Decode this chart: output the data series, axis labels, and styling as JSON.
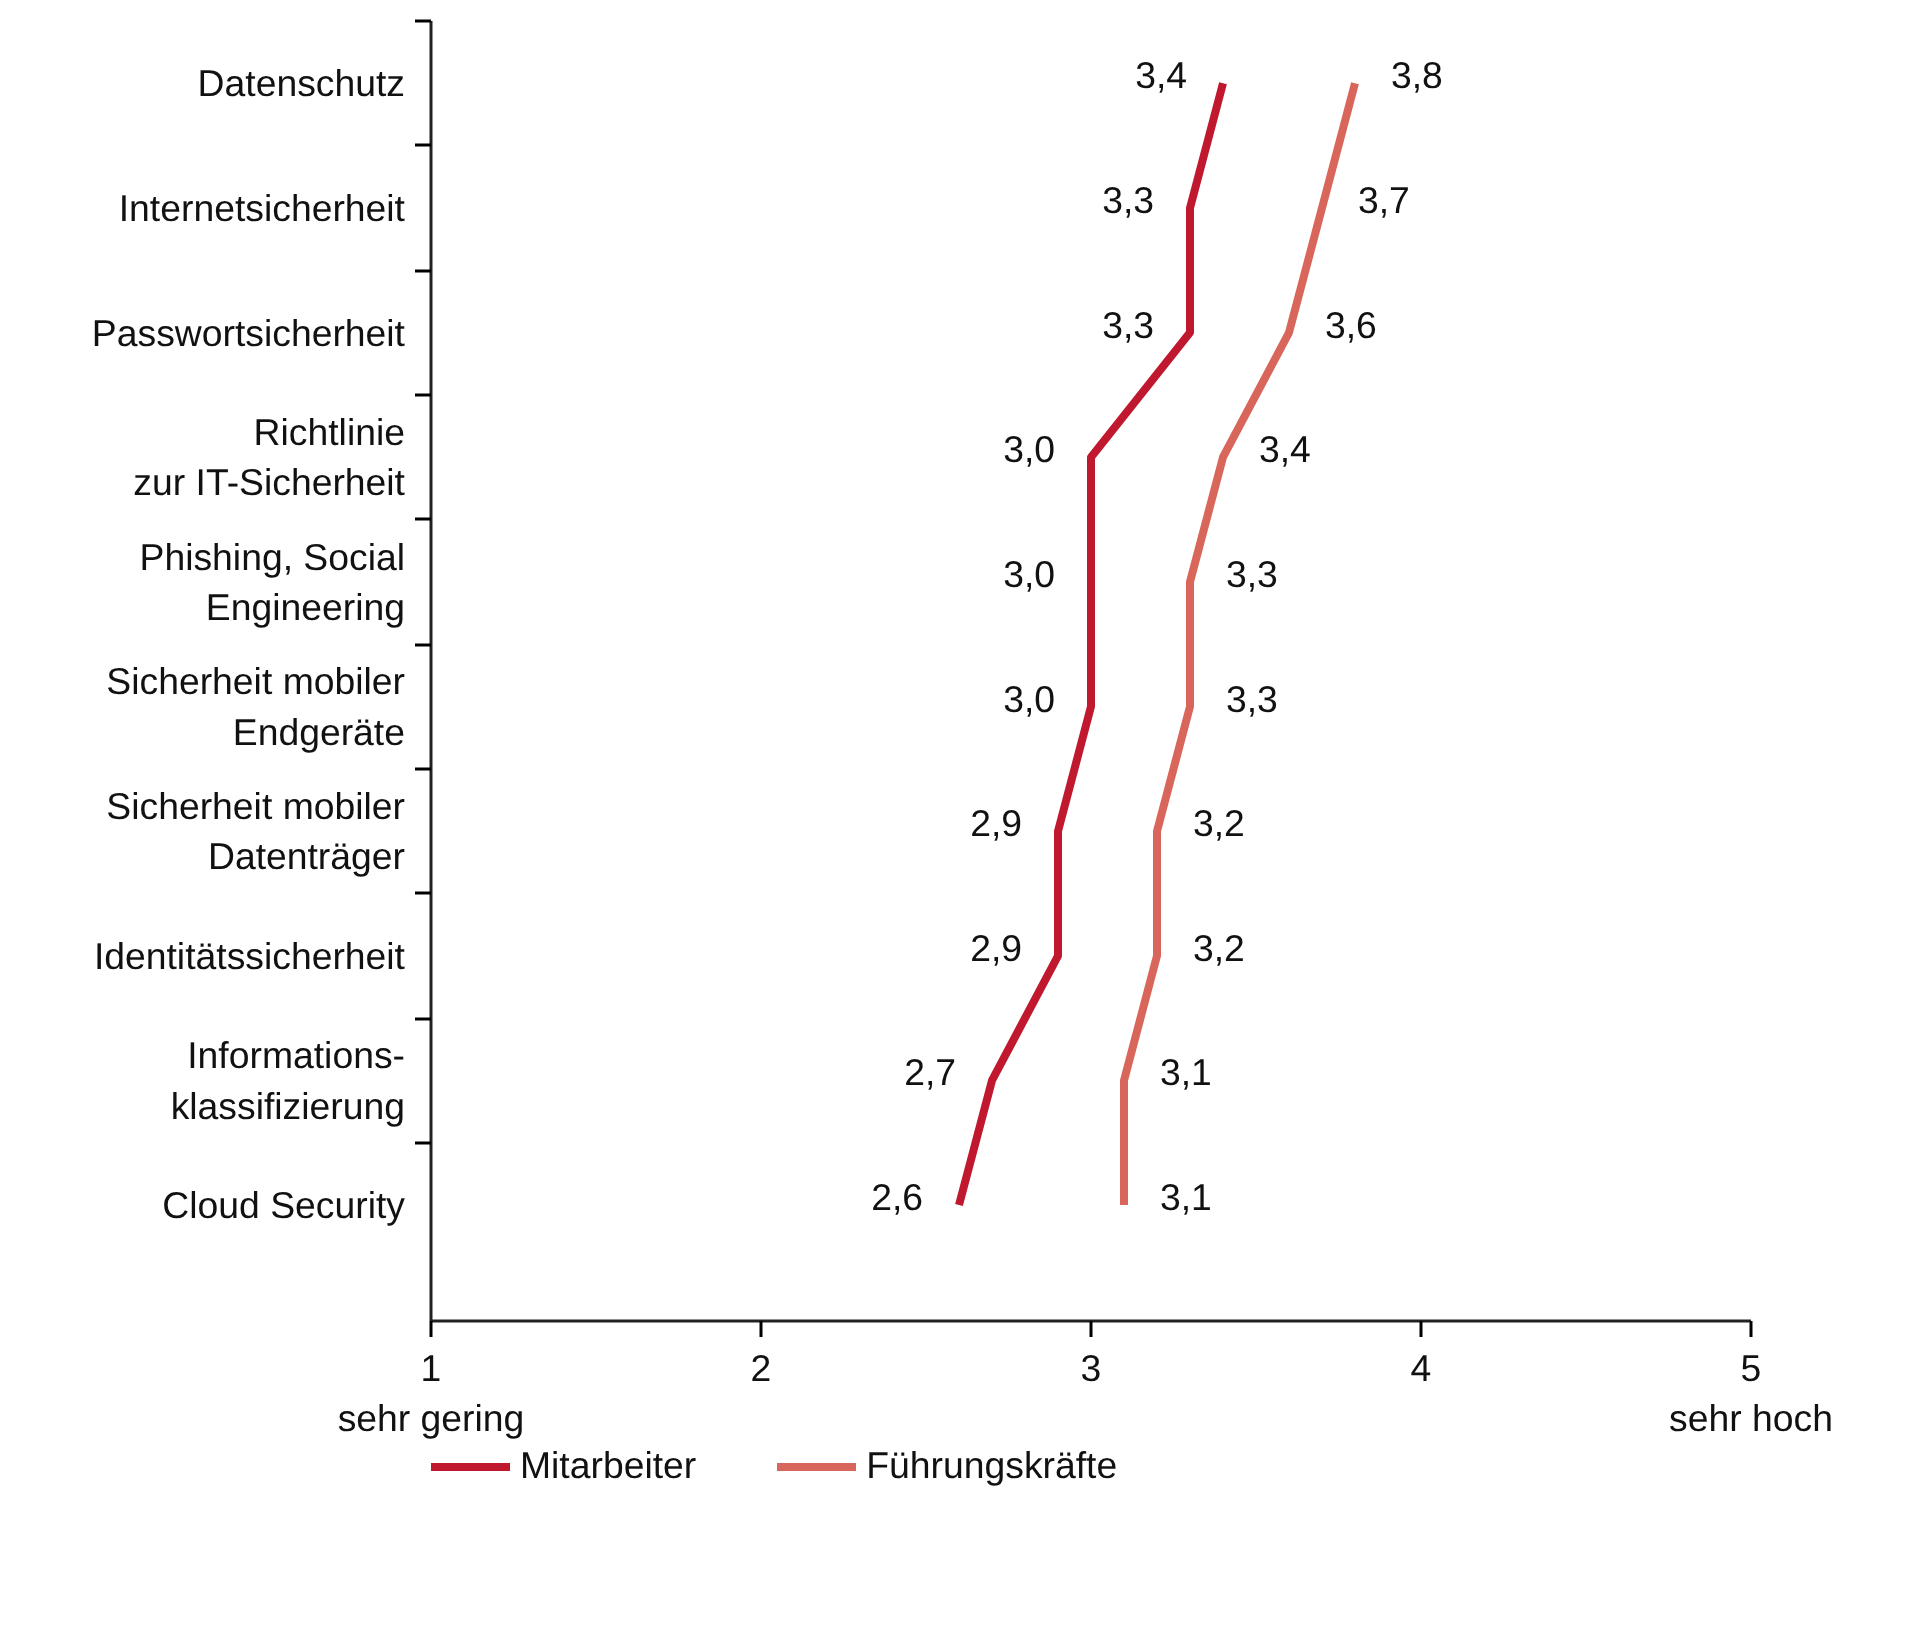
{
  "chart_data": {
    "type": "line",
    "orientation": "horizontal",
    "categories": [
      "Datenschutz",
      "Internetsicherheit",
      "Passwortsicherheit",
      "Richtlinie\nzur IT-Sicherheit",
      "Phishing, Social\nEngineering",
      "Sicherheit mobiler\nEndgeräte",
      "Sicherheit mobiler\nDatenträger",
      "Identitätssicherheit",
      "Informations-\nklassifizierung",
      "Cloud Security"
    ],
    "series": [
      {
        "name": "Mitarbeiter",
        "color": "#c0182f",
        "values": [
          3.4,
          3.3,
          3.3,
          3.0,
          3.0,
          3.0,
          2.9,
          2.9,
          2.7,
          2.6
        ],
        "value_labels": [
          "3,4",
          "3,3",
          "3,3",
          "3,0",
          "3,0",
          "3,0",
          "2,9",
          "2,9",
          "2,7",
          "2,6"
        ]
      },
      {
        "name": "Führungskräfte",
        "color": "#d9665a",
        "values": [
          3.8,
          3.7,
          3.6,
          3.4,
          3.3,
          3.3,
          3.2,
          3.2,
          3.1,
          3.1
        ],
        "value_labels": [
          "3,8",
          "3,7",
          "3,6",
          "3,4",
          "3,3",
          "3,3",
          "3,2",
          "3,2",
          "3,1",
          "3,1"
        ]
      }
    ],
    "xlim": [
      1,
      5
    ],
    "xticks": [
      {
        "value": 1,
        "label": "1\nsehr gering"
      },
      2,
      3,
      4,
      {
        "value": 5,
        "label": "5\nsehr hoch"
      }
    ],
    "grid": false,
    "legend": "bottom",
    "marker": "none",
    "line_style": "solid"
  }
}
